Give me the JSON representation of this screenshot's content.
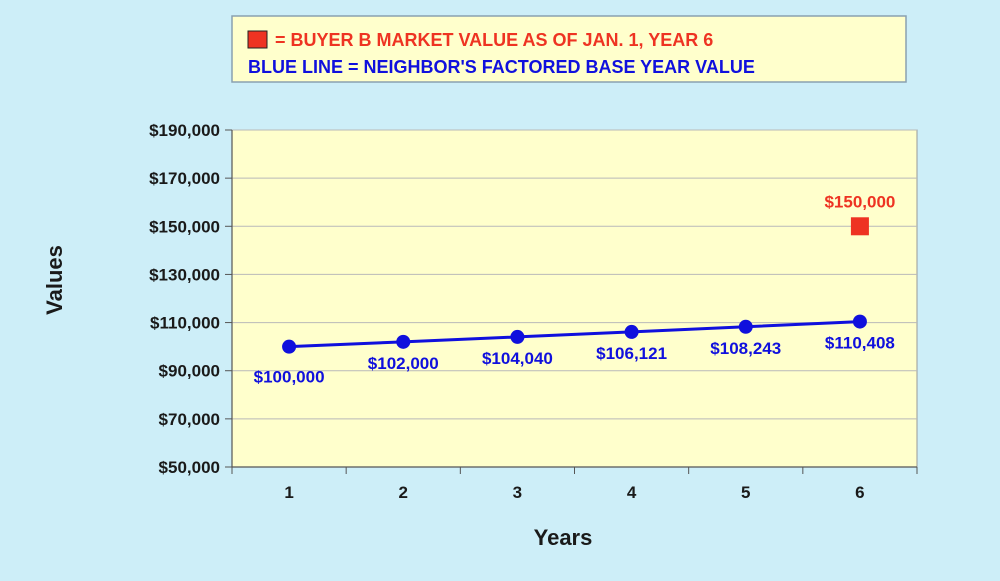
{
  "legend": {
    "marker_text": "= BUYER B MARKET VALUE AS OF JAN. 1, YEAR 6",
    "line_text": "BLUE LINE = NEIGHBOR'S FACTORED BASE YEAR VALUE"
  },
  "colors": {
    "background": "#cdeef8",
    "plot_area": "#ffffcc",
    "legend_box": "#ffffcc",
    "line_series": "#1010dd",
    "marker_series": "#ee3322",
    "grid": "#b9b9b9"
  },
  "chart_data": {
    "type": "line",
    "title": "",
    "xlabel": "Years",
    "ylabel": "Values",
    "categories": [
      "1",
      "2",
      "3",
      "4",
      "5",
      "6"
    ],
    "ylim": [
      50000,
      190000
    ],
    "yticks": [
      50000,
      70000,
      90000,
      110000,
      130000,
      150000,
      170000,
      190000
    ],
    "ytick_labels": [
      "$50,000",
      "$70,000",
      "$90,000",
      "$110,000",
      "$130,000",
      "$150,000",
      "$170,000",
      "$190,000"
    ],
    "grid": true,
    "legend_placement": "top",
    "series": [
      {
        "name": "NEIGHBOR'S FACTORED BASE YEAR VALUE",
        "kind": "line",
        "values": [
          100000,
          102000,
          104040,
          106121,
          108243,
          110408
        ],
        "labels": [
          "$100,000",
          "$102,000",
          "$104,040",
          "$106,121",
          "$108,243",
          "$110,408"
        ]
      },
      {
        "name": "BUYER B MARKET VALUE AS OF JAN. 1, YEAR 6",
        "kind": "marker",
        "x": "6",
        "value": 150000,
        "label": "$150,000"
      }
    ]
  }
}
